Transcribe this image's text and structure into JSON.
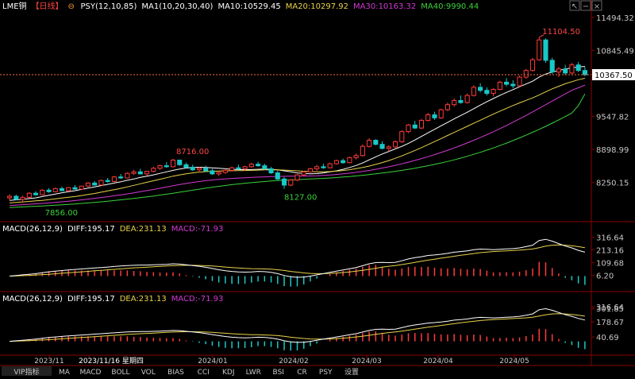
{
  "header": {
    "symbol": "LME铜",
    "period": "【日线】",
    "psy_label": "PSY(12,10,85)",
    "ma_label": "MA1(10,20,30,40)",
    "ma10": "MA10:10529.45",
    "ma20": "MA20:10297.92",
    "ma30": "MA30:10163.32",
    "ma40": "MA40:9990.44"
  },
  "window_buttons": [
    "↖",
    "−",
    "×"
  ],
  "price_panel": {
    "y_ticks": [
      "11494.32",
      "10845.49",
      "9547.82",
      "8898.99",
      "8250.15"
    ],
    "current_price": "10367.50",
    "annotations": {
      "high": "11104.50",
      "mid": "8716.00",
      "low1": "7856.00",
      "low2": "8127.00"
    }
  },
  "macd1": {
    "label": "MACD(26,12,9)",
    "diff": "DIFF:195.17",
    "dea": "DEA:231.13",
    "macd": "MACD:-71.93",
    "y_ticks": [
      "316.64",
      "213.16",
      "109.68",
      "6.20"
    ]
  },
  "macd2": {
    "label": "MACD(26,12,9)",
    "diff": "DIFF:195.17",
    "dea": "DEA:231.13",
    "macd": "MACD:-71.93",
    "y_ticks": [
      "316.64",
      "301.85",
      "178.67",
      "40.69"
    ]
  },
  "x_axis": {
    "labels": [
      "2023/11",
      "2023/11/16 星期四",
      "2024/01",
      "2024/02",
      "2024/03",
      "2024/04",
      "2024/05"
    ]
  },
  "tabs": [
    "VIP指标",
    "MA",
    "MACD",
    "BOLL",
    "VOL",
    "BIAS",
    "CCI",
    "KDJ",
    "LWR",
    "BSI",
    "CR",
    "PSY",
    "设置"
  ],
  "colors": {
    "up": "#ff3b3b",
    "down": "#19c8c8",
    "ma10": "#ffffff",
    "ma20": "#e8d24a",
    "ma30": "#d23ad2",
    "ma40": "#3ad23a",
    "axis": "#8b0000",
    "text": "#c8c8c8",
    "price_tag_bg": "#ffffff"
  },
  "chart_data": {
    "type": "candlestick",
    "series": [
      {
        "name": "LME铜",
        "values": [
          [
            7950,
            8020,
            7890,
            7980
          ],
          [
            7980,
            8010,
            7900,
            7920
          ],
          [
            7920,
            7990,
            7856,
            7960
          ],
          [
            7960,
            8060,
            7940,
            8040
          ],
          [
            8040,
            8080,
            7990,
            8010
          ],
          [
            8010,
            8120,
            8000,
            8100
          ],
          [
            8100,
            8140,
            8050,
            8070
          ],
          [
            8070,
            8150,
            8060,
            8130
          ],
          [
            8130,
            8170,
            8080,
            8090
          ],
          [
            8090,
            8160,
            8070,
            8150
          ],
          [
            8150,
            8200,
            8110,
            8120
          ],
          [
            8120,
            8190,
            8100,
            8180
          ],
          [
            8180,
            8260,
            8160,
            8240
          ],
          [
            8240,
            8280,
            8190,
            8200
          ],
          [
            8200,
            8310,
            8190,
            8290
          ],
          [
            8290,
            8340,
            8250,
            8270
          ],
          [
            8270,
            8380,
            8260,
            8360
          ],
          [
            8360,
            8420,
            8320,
            8340
          ],
          [
            8340,
            8450,
            8330,
            8430
          ],
          [
            8430,
            8500,
            8400,
            8460
          ],
          [
            8460,
            8520,
            8410,
            8420
          ],
          [
            8420,
            8480,
            8380,
            8470
          ],
          [
            8470,
            8560,
            8450,
            8530
          ],
          [
            8530,
            8600,
            8500,
            8580
          ],
          [
            8580,
            8650,
            8540,
            8560
          ],
          [
            8560,
            8716,
            8550,
            8690
          ],
          [
            8690,
            8700,
            8580,
            8600
          ],
          [
            8600,
            8640,
            8530,
            8550
          ],
          [
            8550,
            8600,
            8480,
            8500
          ],
          [
            8500,
            8560,
            8450,
            8530
          ],
          [
            8530,
            8580,
            8460,
            8480
          ],
          [
            8480,
            8520,
            8400,
            8420
          ],
          [
            8420,
            8480,
            8380,
            8450
          ],
          [
            8450,
            8520,
            8420,
            8490
          ],
          [
            8490,
            8560,
            8470,
            8540
          ],
          [
            8540,
            8600,
            8500,
            8520
          ],
          [
            8520,
            8580,
            8480,
            8560
          ],
          [
            8560,
            8640,
            8540,
            8610
          ],
          [
            8610,
            8660,
            8560,
            8580
          ],
          [
            8580,
            8620,
            8500,
            8520
          ],
          [
            8520,
            8560,
            8420,
            8440
          ],
          [
            8440,
            8480,
            8300,
            8320
          ],
          [
            8320,
            8360,
            8127,
            8200
          ],
          [
            8200,
            8320,
            8180,
            8300
          ],
          [
            8300,
            8420,
            8280,
            8400
          ],
          [
            8400,
            8480,
            8380,
            8460
          ],
          [
            8460,
            8540,
            8440,
            8520
          ],
          [
            8520,
            8600,
            8480,
            8560
          ],
          [
            8560,
            8620,
            8520,
            8540
          ],
          [
            8540,
            8640,
            8530,
            8620
          ],
          [
            8620,
            8700,
            8600,
            8680
          ],
          [
            8680,
            8720,
            8620,
            8640
          ],
          [
            8640,
            8760,
            8630,
            8740
          ],
          [
            8740,
            8820,
            8700,
            8780
          ],
          [
            8780,
            9000,
            8760,
            8960
          ],
          [
            8960,
            9120,
            8940,
            9080
          ],
          [
            9080,
            9100,
            8980,
            9000
          ],
          [
            9000,
            9060,
            8900,
            8920
          ],
          [
            8920,
            8980,
            8860,
            8950
          ],
          [
            8950,
            9080,
            8930,
            9050
          ],
          [
            9050,
            9280,
            9030,
            9250
          ],
          [
            9250,
            9400,
            9220,
            9380
          ],
          [
            9380,
            9460,
            9300,
            9320
          ],
          [
            9320,
            9500,
            9300,
            9470
          ],
          [
            9470,
            9620,
            9450,
            9580
          ],
          [
            9580,
            9640,
            9480,
            9520
          ],
          [
            9520,
            9700,
            9500,
            9680
          ],
          [
            9680,
            9820,
            9650,
            9780
          ],
          [
            9780,
            9900,
            9740,
            9860
          ],
          [
            9860,
            9960,
            9800,
            9820
          ],
          [
            9820,
            10000,
            9800,
            9960
          ],
          [
            9960,
            10160,
            9940,
            10120
          ],
          [
            10120,
            10200,
            10020,
            10060
          ],
          [
            10060,
            10120,
            9960,
            10000
          ],
          [
            10000,
            10100,
            9940,
            10080
          ],
          [
            10080,
            10250,
            10060,
            10220
          ],
          [
            10220,
            10300,
            10140,
            10180
          ],
          [
            10180,
            10260,
            10100,
            10150
          ],
          [
            10150,
            10350,
            10130,
            10320
          ],
          [
            10320,
            10480,
            10290,
            10450
          ],
          [
            10450,
            10700,
            10430,
            10660
          ],
          [
            10660,
            11104.5,
            10640,
            11050
          ],
          [
            11050,
            11080,
            10600,
            10650
          ],
          [
            10650,
            10700,
            10380,
            10420
          ],
          [
            10420,
            10520,
            10320,
            10480
          ],
          [
            10480,
            10560,
            10360,
            10400
          ],
          [
            10400,
            10600,
            10380,
            10560
          ],
          [
            10560,
            10620,
            10420,
            10450
          ],
          [
            10450,
            10520,
            10340,
            10367.5
          ]
        ]
      }
    ],
    "ma_values": {
      "MA10": [
        7900,
        7910,
        7920,
        7935,
        7950,
        7975,
        8000,
        8025,
        8050,
        8070,
        8090,
        8115,
        8140,
        8165,
        8190,
        8215,
        8240,
        8265,
        8295,
        8320,
        8350,
        8375,
        8400,
        8430,
        8460,
        8490,
        8515,
        8535,
        8545,
        8550,
        8545,
        8540,
        8530,
        8520,
        8510,
        8505,
        8500,
        8505,
        8510,
        8515,
        8510,
        8500,
        8480,
        8460,
        8440,
        8430,
        8420,
        8425,
        8440,
        8460,
        8480,
        8510,
        8545,
        8585,
        8635,
        8695,
        8755,
        8810,
        8860,
        8910,
        8960,
        9020,
        9085,
        9155,
        9225,
        9295,
        9365,
        9430,
        9500,
        9565,
        9630,
        9700,
        9770,
        9835,
        9900,
        9960,
        10020,
        10075,
        10130,
        10185,
        10240,
        10320,
        10380,
        10420,
        10450,
        10480,
        10500,
        10520,
        10529.45
      ],
      "MA20": [
        7850,
        7860,
        7870,
        7880,
        7890,
        7900,
        7915,
        7930,
        7945,
        7960,
        7975,
        7995,
        8015,
        8035,
        8060,
        8085,
        8110,
        8135,
        8165,
        8195,
        8225,
        8255,
        8285,
        8315,
        8345,
        8375,
        8400,
        8420,
        8440,
        8455,
        8465,
        8470,
        8475,
        8480,
        8482,
        8484,
        8486,
        8490,
        8494,
        8498,
        8500,
        8498,
        8494,
        8488,
        8480,
        8472,
        8466,
        8462,
        8462,
        8466,
        8474,
        8486,
        8502,
        8522,
        8546,
        8574,
        8606,
        8642,
        8682,
        8726,
        8774,
        8826,
        8880,
        8936,
        8994,
        9054,
        9114,
        9174,
        9234,
        9294,
        9354,
        9414,
        9474,
        9534,
        9594,
        9652,
        9708,
        9762,
        9814,
        9864,
        9912,
        9968,
        10030,
        10090,
        10140,
        10190,
        10230,
        10270,
        10297.92
      ],
      "MA30": [
        7800,
        7808,
        7816,
        7824,
        7832,
        7840,
        7850,
        7860,
        7872,
        7884,
        7896,
        7910,
        7924,
        7940,
        7956,
        7972,
        7990,
        8008,
        8028,
        8048,
        8070,
        8092,
        8114,
        8138,
        8162,
        8186,
        8210,
        8232,
        8252,
        8270,
        8286,
        8300,
        8312,
        8322,
        8330,
        8338,
        8344,
        8350,
        8356,
        8362,
        8366,
        8370,
        8372,
        8374,
        8376,
        8378,
        8380,
        8384,
        8390,
        8398,
        8408,
        8420,
        8434,
        8450,
        8468,
        8488,
        8510,
        8534,
        8560,
        8588,
        8618,
        8650,
        8684,
        8720,
        8758,
        8798,
        8840,
        8884,
        8930,
        8978,
        9028,
        9080,
        9134,
        9190,
        9248,
        9308,
        9370,
        9434,
        9500,
        9568,
        9638,
        9708,
        9780,
        9850,
        9920,
        9990,
        10060,
        10110,
        10163.32
      ],
      "MA40": [
        7760,
        7766,
        7772,
        7778,
        7784,
        7790,
        7798,
        7806,
        7814,
        7822,
        7830,
        7840,
        7850,
        7860,
        7872,
        7884,
        7896,
        7910,
        7924,
        7938,
        7954,
        7970,
        7986,
        8004,
        8022,
        8040,
        8060,
        8080,
        8100,
        8120,
        8140,
        8158,
        8176,
        8192,
        8208,
        8222,
        8236,
        8248,
        8260,
        8270,
        8280,
        8288,
        8296,
        8302,
        8308,
        8314,
        8320,
        8326,
        8332,
        8340,
        8348,
        8358,
        8368,
        8380,
        8392,
        8406,
        8420,
        8436,
        8452,
        8470,
        8490,
        8510,
        8532,
        8556,
        8580,
        8606,
        8634,
        8664,
        8696,
        8730,
        8766,
        8804,
        8844,
        8886,
        8930,
        8976,
        9024,
        9074,
        9126,
        9180,
        9236,
        9294,
        9354,
        9416,
        9480,
        9546,
        9614,
        9760,
        9990.44
      ]
    },
    "macd_data": {
      "DIFF": [
        0,
        5,
        10,
        15,
        20,
        28,
        35,
        40,
        45,
        50,
        54,
        58,
        62,
        66,
        70,
        74,
        78,
        82,
        86,
        88,
        90,
        90,
        92,
        94,
        96,
        100,
        98,
        92,
        86,
        80,
        72,
        62,
        52,
        44,
        38,
        34,
        32,
        34,
        38,
        36,
        30,
        20,
        5,
        -5,
        -10,
        -8,
        0,
        10,
        20,
        30,
        40,
        50,
        60,
        70,
        85,
        100,
        110,
        112,
        110,
        112,
        125,
        140,
        150,
        158,
        168,
        172,
        178,
        185,
        195,
        200,
        205,
        215,
        220,
        218,
        215,
        218,
        222,
        224,
        230,
        240,
        252,
        290,
        300,
        285,
        265,
        245,
        230,
        210,
        195.17
      ],
      "DEA": [
        0,
        2,
        4,
        6,
        9,
        12,
        15,
        19,
        23,
        27,
        31,
        35,
        39,
        43,
        47,
        51,
        55,
        59,
        63,
        67,
        70,
        73,
        76,
        79,
        82,
        85,
        87,
        88,
        88,
        87,
        85,
        82,
        78,
        74,
        70,
        66,
        63,
        61,
        60,
        58,
        56,
        52,
        46,
        38,
        32,
        26,
        22,
        20,
        20,
        22,
        25,
        29,
        34,
        40,
        47,
        55,
        64,
        73,
        80,
        86,
        94,
        103,
        112,
        121,
        130,
        138,
        146,
        154,
        162,
        170,
        177,
        184,
        191,
        196,
        200,
        203,
        206,
        209,
        212,
        216,
        221,
        232,
        244,
        252,
        254,
        252,
        247,
        240,
        231.13
      ],
      "MACD": [
        0,
        6,
        12,
        18,
        22,
        32,
        40,
        42,
        44,
        46,
        46,
        46,
        46,
        46,
        46,
        46,
        46,
        46,
        46,
        42,
        40,
        34,
        32,
        30,
        28,
        30,
        22,
        8,
        -4,
        -14,
        -26,
        -40,
        -52,
        -60,
        -64,
        -64,
        -62,
        -54,
        -44,
        -44,
        -52,
        -64,
        -82,
        -86,
        -84,
        -68,
        -44,
        -20,
        0,
        16,
        30,
        42,
        52,
        60,
        76,
        90,
        92,
        78,
        60,
        52,
        62,
        74,
        76,
        74,
        76,
        68,
        64,
        62,
        66,
        60,
        56,
        62,
        58,
        44,
        30,
        30,
        32,
        30,
        36,
        48,
        62,
        116,
        112,
        66,
        22,
        -14,
        -34,
        -60,
        -71.93
      ]
    }
  }
}
